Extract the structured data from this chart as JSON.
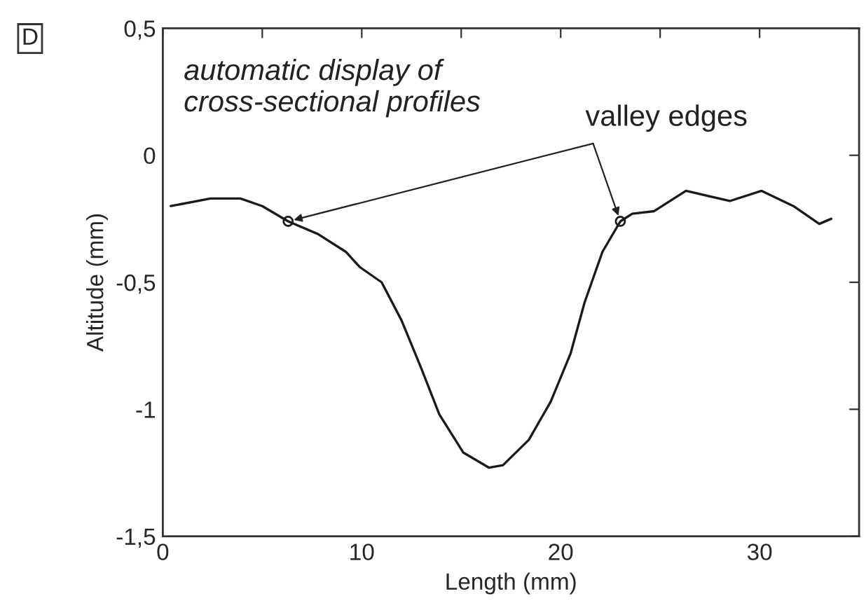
{
  "chart_data": {
    "type": "line",
    "xlabel": "Length (mm)",
    "ylabel": "Altitude (mm)",
    "xlim": [
      0,
      35
    ],
    "ylim": [
      -1.5,
      0.5
    ],
    "xticks": [
      0,
      {
        "value": 5,
        "label": null
      },
      10,
      {
        "value": 15,
        "label": null
      },
      20,
      {
        "value": 25,
        "label": null
      },
      30
    ],
    "yticks": [
      {
        "value": -1.5,
        "label": "-1,5"
      },
      {
        "value": -1,
        "label": "-1"
      },
      {
        "value": -0.5,
        "label": "-0,5"
      },
      {
        "value": 0,
        "label": "0"
      },
      {
        "value": 0.5,
        "label": "0,5"
      }
    ],
    "grid": false,
    "legend": false,
    "line_style": "solid",
    "series": [
      {
        "color": "#1a1a1a",
        "marker": "none",
        "x": [
          0.4,
          2.4,
          3.9,
          5.0,
          6.3,
          7.8,
          9.2,
          9.9,
          11.0,
          12.0,
          13.0,
          13.9,
          15.1,
          16.4,
          17.1,
          18.4,
          19.5,
          20.5,
          21.2,
          22.1,
          23.0,
          23.6,
          24.7,
          26.3,
          28.5,
          30.1,
          31.7,
          33.0,
          33.6
        ],
        "values": [
          -0.2,
          -0.17,
          -0.17,
          -0.2,
          -0.26,
          -0.31,
          -0.38,
          -0.44,
          -0.5,
          -0.65,
          -0.84,
          -1.02,
          -1.17,
          -1.23,
          -1.22,
          -1.12,
          -0.97,
          -0.78,
          -0.58,
          -0.38,
          -0.26,
          -0.23,
          -0.22,
          -0.14,
          -0.18,
          -0.14,
          -0.2,
          -0.27,
          -0.25
        ]
      },
      {
        "type": "scatter",
        "color": "#1a1a1a",
        "marker": "circle",
        "x": [
          6.3,
          23.0
        ],
        "values": [
          -0.26,
          -0.26
        ]
      }
    ],
    "annotations": [
      "D",
      "automatic display of\ncross-sectional profiles",
      {
        "text": "valley edges",
        "x": 23.0,
        "y": -0.26
      }
    ]
  }
}
